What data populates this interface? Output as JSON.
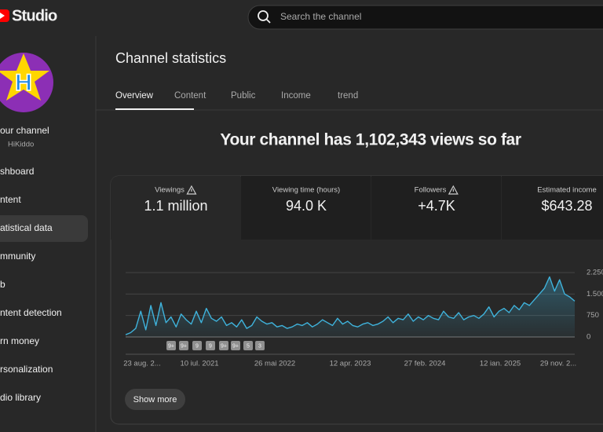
{
  "header": {
    "logo": "Studio",
    "search_placeholder": "Search the channel"
  },
  "sidebar": {
    "channel_title": "our channel",
    "channel_handle": "HiKiddo",
    "avatar_letter": "H",
    "menu": [
      "shboard",
      "ntent",
      "atistical data",
      "mmunity",
      "b",
      "ntent detection",
      "rn money",
      "rsonalization",
      "dio library"
    ]
  },
  "page": {
    "title": "Channel statistics",
    "tabs": [
      "Overview",
      "Content",
      "Public",
      "Income",
      "trend"
    ],
    "headline": "Your channel has 1,102,343 views so far",
    "metrics": [
      {
        "label": "Viewings",
        "value": "1.1 million"
      },
      {
        "label": "Viewing time (hours)",
        "value": "94.0 K"
      },
      {
        "label": "Followers",
        "value": "+4.7K"
      },
      {
        "label": "Estimated income",
        "value": "$643.28"
      }
    ],
    "button": "Show more"
  },
  "chart_data": {
    "type": "area",
    "color": "#3fb3dc",
    "ylim": [
      0,
      2250
    ],
    "yticks": [
      0,
      750,
      {
        "value": 1500,
        "label": "1.500"
      },
      {
        "value": 2250,
        "label": "2.250"
      }
    ],
    "grid": true,
    "xlabels": [
      "23 aug. 2...",
      "10 iul. 2021",
      "26 mai 2022",
      "12 apr. 2023",
      "27 feb. 2024",
      "12 ian. 2025",
      "29 nov. 2..."
    ],
    "badges": [
      "9+",
      "9+",
      "9",
      "9",
      "9+",
      "9+",
      "5",
      "3"
    ],
    "values": [
      80,
      150,
      300,
      900,
      250,
      1100,
      400,
      1200,
      500,
      700,
      350,
      800,
      600,
      450,
      900,
      500,
      1000,
      650,
      550,
      700,
      400,
      500,
      350,
      600,
      300,
      400,
      700,
      550,
      450,
      500,
      350,
      400,
      300,
      350,
      450,
      400,
      500,
      350,
      450,
      600,
      500,
      400,
      650,
      450,
      550,
      400,
      350,
      450,
      500,
      400,
      450,
      550,
      700,
      500,
      650,
      600,
      800,
      550,
      700,
      600,
      750,
      650,
      600,
      900,
      700,
      650,
      850,
      600,
      700,
      750,
      650,
      800,
      1050,
      700,
      900,
      1000,
      850,
      1100,
      950,
      1200,
      1100,
      1300,
      1500,
      1700,
      2100,
      1600,
      2000,
      1500,
      1400,
      1250
    ]
  }
}
